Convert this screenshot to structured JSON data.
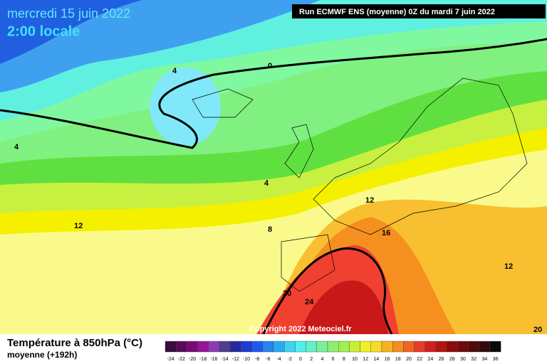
{
  "header": {
    "date": "mercredi 15 juin 2022",
    "time": "2:00 locale",
    "run": "Run ECMWF ENS (moyenne) 0Z du mardi 7 juin 2022",
    "copyright": "Copyright 2022 Meteociel.fr"
  },
  "contours": [
    "4",
    "0",
    "4",
    "4",
    "8",
    "12",
    "12",
    "16",
    "12",
    "20",
    "24",
    "20"
  ],
  "legend": {
    "title": "Température à 850hPa (°C)",
    "subtitle": "moyenne  (+192h)",
    "labels": [
      "-24",
      "-22",
      "-20",
      "-18",
      "-16",
      "-14",
      "-12",
      "-10",
      "-8",
      "-6",
      "-4",
      "-2",
      "0",
      "2",
      "4",
      "6",
      "8",
      "10",
      "12",
      "14",
      "16",
      "18",
      "20",
      "22",
      "24",
      "26",
      "28",
      "30",
      "32",
      "34",
      "36"
    ],
    "colors": [
      "#3c0a3c",
      "#5a0a5a",
      "#780a78",
      "#961496",
      "#8c3cb4",
      "#503c8c",
      "#2828a0",
      "#1e3cd2",
      "#1e5af0",
      "#2882f0",
      "#28aaf0",
      "#3cd2f0",
      "#50f0f0",
      "#64f0c8",
      "#78f09a",
      "#8cf06e",
      "#a0f050",
      "#c8f032",
      "#f0f028",
      "#f5dc28",
      "#f5b41e",
      "#f58c1e",
      "#f0641e",
      "#e63c28",
      "#d21e1e",
      "#b41414",
      "#8c0a0a",
      "#6e0a0a",
      "#500a0a",
      "#320a0a",
      "#0a0a0a"
    ]
  }
}
